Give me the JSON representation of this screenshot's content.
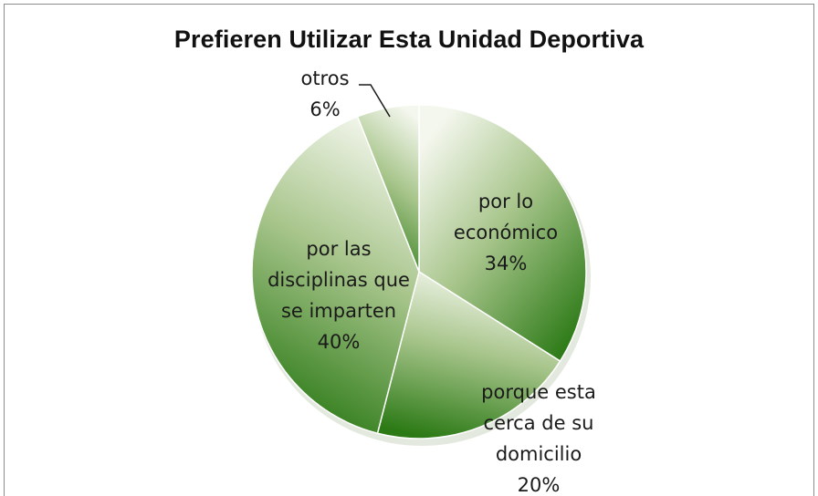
{
  "chart_data": {
    "type": "pie",
    "title": "Prefieren Utilizar Esta Unidad Deportiva",
    "start_angle_deg": 0,
    "direction": "clockwise",
    "slices": [
      {
        "label_lines": [
          "por lo",
          "económico"
        ],
        "percent_label": "34%",
        "value": 34
      },
      {
        "label_lines": [
          "porque esta",
          "cerca de su",
          "domicilio"
        ],
        "percent_label": "20%",
        "value": 20
      },
      {
        "label_lines": [
          "por las",
          "disciplinas que",
          "se imparten"
        ],
        "percent_label": "40%",
        "value": 40
      },
      {
        "label_lines": [
          "otros"
        ],
        "percent_label": "6%",
        "value": 6
      }
    ],
    "colors": {
      "light": "#f4f7ee",
      "dark": "#2c7a16"
    },
    "legend": "none",
    "leader_line_for": "otros"
  }
}
